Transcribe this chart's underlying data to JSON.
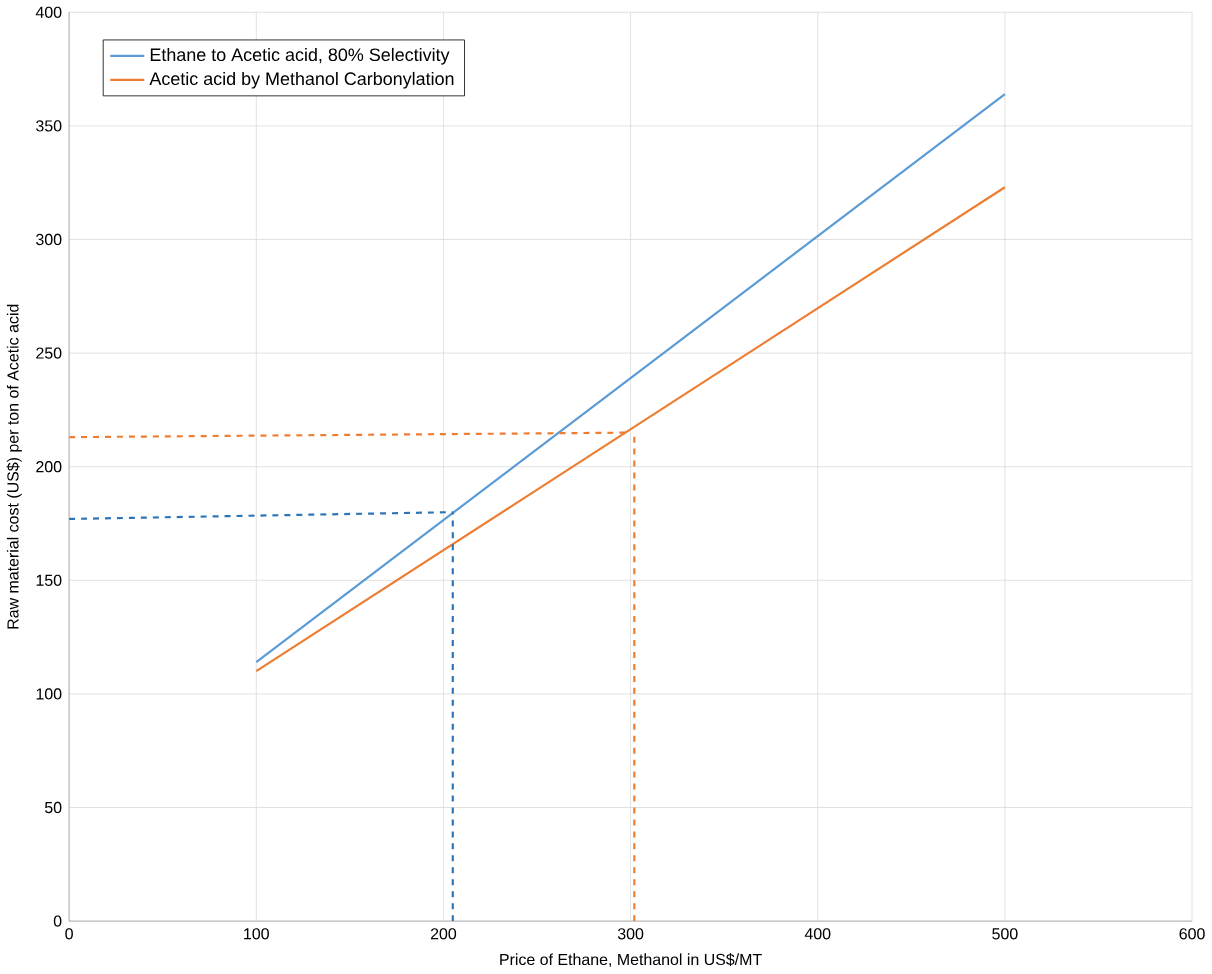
{
  "chart_data": {
    "type": "line",
    "xlabel": "Price of Ethane, Methanol in US$/MT",
    "ylabel": "Raw material cost (US$) per ton of Acetic acid",
    "xlim": [
      0,
      600
    ],
    "xticks": [
      0,
      100,
      200,
      300,
      400,
      500,
      600
    ],
    "ylim": [
      0,
      400
    ],
    "yticks": [
      0,
      50,
      100,
      150,
      200,
      250,
      300,
      350,
      400
    ],
    "grid": true,
    "legend": "top left",
    "marker": "none",
    "series": [
      {
        "name": "Ethane to Acetic acid, 80% Selectivity",
        "color": "#5b9bd5",
        "x": [
          100,
          500
        ],
        "values": [
          114,
          364
        ]
      },
      {
        "name": "Acetic acid by Methanol Carbonylation",
        "color": "#ed7d31",
        "x": [
          100,
          500
        ],
        "values": [
          110,
          323
        ]
      },
      {
        "color": "#2e75b6",
        "line_style": "dashed",
        "x": [
          0,
          205
        ],
        "values": [
          177,
          180
        ]
      },
      {
        "color": "#2e75b6",
        "line_style": "dashed",
        "x": [
          205,
          205
        ],
        "values": [
          0,
          180
        ]
      },
      {
        "color": "#ed7d31",
        "line_style": "dashed",
        "x": [
          0,
          300
        ],
        "values": [
          213,
          215
        ]
      },
      {
        "color": "#ed7d31",
        "line_style": "dashed",
        "x": [
          302,
          302
        ],
        "values": [
          0,
          215
        ]
      }
    ]
  }
}
